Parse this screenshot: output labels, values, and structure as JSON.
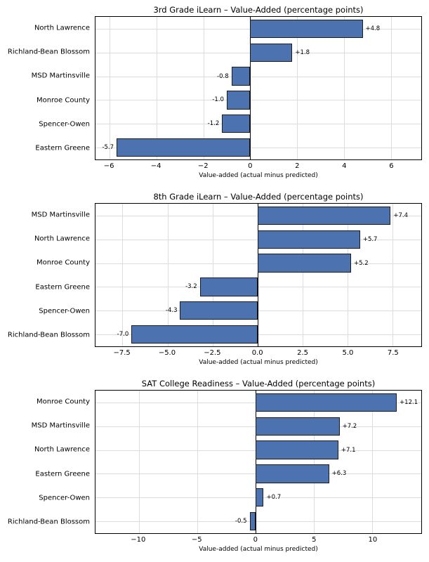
{
  "colors": {
    "bar_fill": "#4C72B0",
    "bar_edge": "#1c1c1c",
    "gridline": "#dcdcdc",
    "zero_line": "#000000"
  },
  "chart_data": [
    {
      "type": "bar",
      "orientation": "horizontal",
      "title": "3rd Grade iLearn – Value-Added (percentage points)",
      "xlabel": "Value-added (actual minus predicted)",
      "categories": [
        "North Lawrence",
        "Richland-Bean Blossom",
        "MSD Martinsville",
        "Monroe County",
        "Spencer-Owen",
        "Eastern Greene"
      ],
      "values": [
        4.8,
        1.8,
        -0.8,
        -1.0,
        -1.2,
        -5.7
      ],
      "value_labels": [
        "+4.8",
        "+1.8",
        "-0.8",
        "-1.0",
        "-1.2",
        "-5.7"
      ],
      "xlim": [
        -6.6,
        7.3
      ],
      "xticks": [
        -6,
        -4,
        -2,
        0,
        2,
        4,
        6
      ],
      "xtick_labels": [
        "−6",
        "−4",
        "−2",
        "0",
        "2",
        "4",
        "6"
      ],
      "grid": true,
      "legend": "none"
    },
    {
      "type": "bar",
      "orientation": "horizontal",
      "title": "8th Grade iLearn – Value-Added (percentage points)",
      "xlabel": "Value-added (actual minus predicted)",
      "categories": [
        "MSD Martinsville",
        "North Lawrence",
        "Monroe County",
        "Eastern Greene",
        "Spencer-Owen",
        "Richland-Bean Blossom"
      ],
      "values": [
        7.4,
        5.7,
        5.2,
        -3.2,
        -4.3,
        -7.0
      ],
      "value_labels": [
        "+7.4",
        "+5.7",
        "+5.2",
        "-3.2",
        "-4.3",
        "-7.0"
      ],
      "xlim": [
        -9.0,
        9.1
      ],
      "xticks": [
        -7.5,
        -5.0,
        -2.5,
        0,
        2.5,
        5.0,
        7.5
      ],
      "xtick_labels": [
        "−7.5",
        "−5.0",
        "−2.5",
        "0.0",
        "2.5",
        "5.0",
        "7.5"
      ],
      "grid": true,
      "legend": "none"
    },
    {
      "type": "bar",
      "orientation": "horizontal",
      "title": "SAT College Readiness – Value-Added (percentage points)",
      "xlabel": "Value-added (actual minus predicted)",
      "categories": [
        "Monroe County",
        "MSD Martinsville",
        "North Lawrence",
        "Eastern Greene",
        "Spencer-Owen",
        "Richland-Bean Blossom"
      ],
      "values": [
        12.1,
        7.2,
        7.1,
        6.3,
        0.7,
        -0.5
      ],
      "value_labels": [
        "+12.1",
        "+7.2",
        "+7.1",
        "+6.3",
        "+0.7",
        "-0.5"
      ],
      "xlim": [
        -13.7,
        14.2
      ],
      "xticks": [
        -10,
        -5,
        0,
        5,
        10
      ],
      "xtick_labels": [
        "−10",
        "−5",
        "0",
        "5",
        "10"
      ],
      "grid": true,
      "legend": "none"
    }
  ]
}
